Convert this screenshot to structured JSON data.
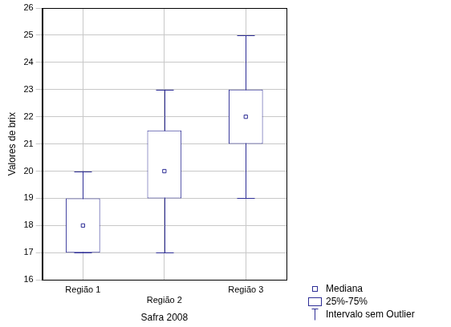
{
  "chart_data": {
    "type": "boxplot",
    "x_label": "Safra 2008",
    "y_label": "Valores de brix",
    "categories": [
      "Região 1",
      "Região 2",
      "Região 3"
    ],
    "series": [
      {
        "name": "Mediana",
        "type": "point",
        "marker": "square",
        "values": [
          18,
          20,
          22
        ]
      },
      {
        "name": "25%-75%",
        "type": "box",
        "low": [
          17,
          19,
          21
        ],
        "high": [
          19,
          21.5,
          23
        ]
      },
      {
        "name": "Intervalo sem Outlier",
        "type": "whisker",
        "low": [
          17,
          17,
          19
        ],
        "high": [
          20,
          23,
          25
        ]
      }
    ],
    "color": "#2e2e96",
    "ylim": [
      16,
      26
    ],
    "yticks": [
      16,
      17,
      18,
      19,
      20,
      21,
      22,
      23,
      24,
      25,
      26
    ],
    "grid": true,
    "legend": "lower right"
  }
}
